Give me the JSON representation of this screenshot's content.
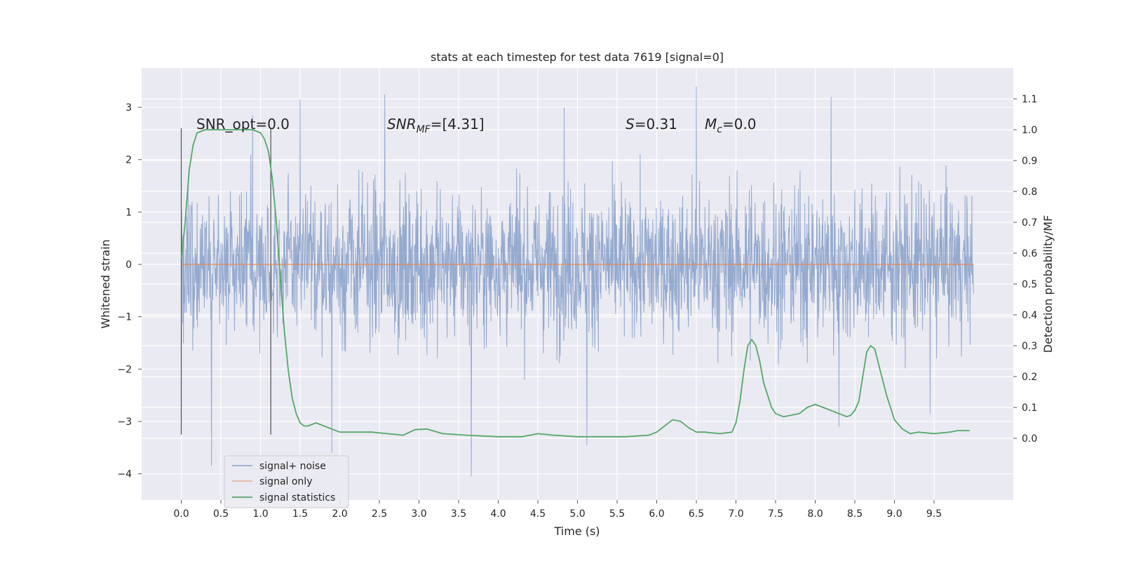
{
  "chart_data": {
    "type": "line",
    "title": "stats at each timestep for test data 7619 [signal=0]",
    "xlabel": "Time (s)",
    "ylabel": "Whitened strain",
    "y2label": "Detection probability/MF",
    "xlim": [
      -0.5,
      10.5
    ],
    "ylim": [
      -4.5,
      3.75
    ],
    "y2lim": [
      -0.2,
      1.2
    ],
    "x_ticks": [
      "0.0",
      "0.5",
      "1.0",
      "1.5",
      "2.0",
      "2.5",
      "3.0",
      "3.5",
      "4.0",
      "4.5",
      "5.0",
      "5.5",
      "6.0",
      "6.5",
      "7.0",
      "7.5",
      "8.0",
      "8.5",
      "9.0",
      "9.5"
    ],
    "y_ticks": [
      "3",
      "2",
      "1",
      "0",
      "−1",
      "−2",
      "−3",
      "−4"
    ],
    "y2_ticks": [
      "1.1",
      "1.0",
      "0.9",
      "0.8",
      "0.7",
      "0.6",
      "0.5",
      "0.4",
      "0.3",
      "0.2",
      "0.1",
      "0.0"
    ],
    "grid": true,
    "legend_placement": "lower-left",
    "annotations": {
      "snr_opt": "SNR_opt=0.0",
      "snr_mf_base": "SNR",
      "snr_mf_sub": "MF",
      "snr_mf_value": "=[4.31]",
      "s_symbol": "S",
      "s_value": "=0.31",
      "mc_symbol": "M",
      "mc_sub": "c",
      "mc_value": "=0.0"
    },
    "vertical_markers_x": [
      0.0,
      1.13
    ],
    "series": [
      {
        "name": "signal+ noise",
        "axis": "left",
        "color": "#4c72b0",
        "kind": "dense noise band",
        "core_range": [
          -1.5,
          1.5
        ],
        "outer_range": [
          -2.3,
          2.6
        ],
        "spikes": [
          {
            "x": 0.0,
            "y": -3.2
          },
          {
            "x": 0.38,
            "y": -3.85
          },
          {
            "x": 0.9,
            "y": 2.85
          },
          {
            "x": 1.5,
            "y": 3.15
          },
          {
            "x": 1.9,
            "y": -3.6
          },
          {
            "x": 2.57,
            "y": 3.25
          },
          {
            "x": 3.66,
            "y": -4.05
          },
          {
            "x": 4.83,
            "y": 3.0
          },
          {
            "x": 5.12,
            "y": -3.45
          },
          {
            "x": 6.5,
            "y": 3.4
          },
          {
            "x": 8.2,
            "y": 3.2
          },
          {
            "x": 8.3,
            "y": -3.1
          },
          {
            "x": 9.45,
            "y": -2.85
          }
        ],
        "x_range": [
          0.0,
          10.0
        ]
      },
      {
        "name": "signal only",
        "axis": "left",
        "color": "#dd8452",
        "x": [
          0.0,
          10.0
        ],
        "y": [
          0.0,
          0.0
        ]
      },
      {
        "name": "signal statistics",
        "axis": "right",
        "color": "#55a868",
        "x": [
          0.0,
          0.05,
          0.1,
          0.15,
          0.2,
          0.3,
          0.5,
          0.7,
          0.9,
          1.0,
          1.05,
          1.1,
          1.15,
          1.2,
          1.25,
          1.3,
          1.35,
          1.4,
          1.45,
          1.5,
          1.55,
          1.6,
          1.7,
          1.8,
          1.9,
          2.0,
          2.2,
          2.4,
          2.6,
          2.8,
          2.95,
          3.1,
          3.3,
          3.6,
          4.0,
          4.3,
          4.5,
          4.7,
          5.0,
          5.3,
          5.6,
          5.9,
          6.0,
          6.1,
          6.2,
          6.3,
          6.4,
          6.5,
          6.6,
          6.8,
          6.95,
          7.0,
          7.05,
          7.1,
          7.15,
          7.2,
          7.25,
          7.3,
          7.35,
          7.45,
          7.5,
          7.6,
          7.7,
          7.8,
          7.9,
          8.0,
          8.1,
          8.2,
          8.3,
          8.4,
          8.45,
          8.5,
          8.55,
          8.6,
          8.65,
          8.7,
          8.75,
          8.8,
          8.9,
          9.0,
          9.1,
          9.2,
          9.3,
          9.5,
          9.7,
          9.8,
          9.95
        ],
        "y": [
          0.58,
          0.7,
          0.87,
          0.95,
          0.99,
          1.0,
          1.0,
          1.0,
          1.0,
          0.99,
          0.97,
          0.93,
          0.84,
          0.7,
          0.52,
          0.35,
          0.22,
          0.13,
          0.08,
          0.05,
          0.04,
          0.04,
          0.05,
          0.04,
          0.03,
          0.02,
          0.02,
          0.02,
          0.015,
          0.01,
          0.028,
          0.03,
          0.015,
          0.01,
          0.005,
          0.005,
          0.015,
          0.01,
          0.005,
          0.005,
          0.005,
          0.01,
          0.02,
          0.04,
          0.06,
          0.055,
          0.035,
          0.02,
          0.02,
          0.015,
          0.02,
          0.05,
          0.12,
          0.22,
          0.3,
          0.32,
          0.3,
          0.25,
          0.18,
          0.1,
          0.08,
          0.07,
          0.075,
          0.08,
          0.1,
          0.11,
          0.1,
          0.09,
          0.08,
          0.07,
          0.075,
          0.09,
          0.12,
          0.2,
          0.28,
          0.3,
          0.29,
          0.24,
          0.14,
          0.06,
          0.03,
          0.015,
          0.02,
          0.015,
          0.02,
          0.025,
          0.025
        ]
      }
    ]
  }
}
